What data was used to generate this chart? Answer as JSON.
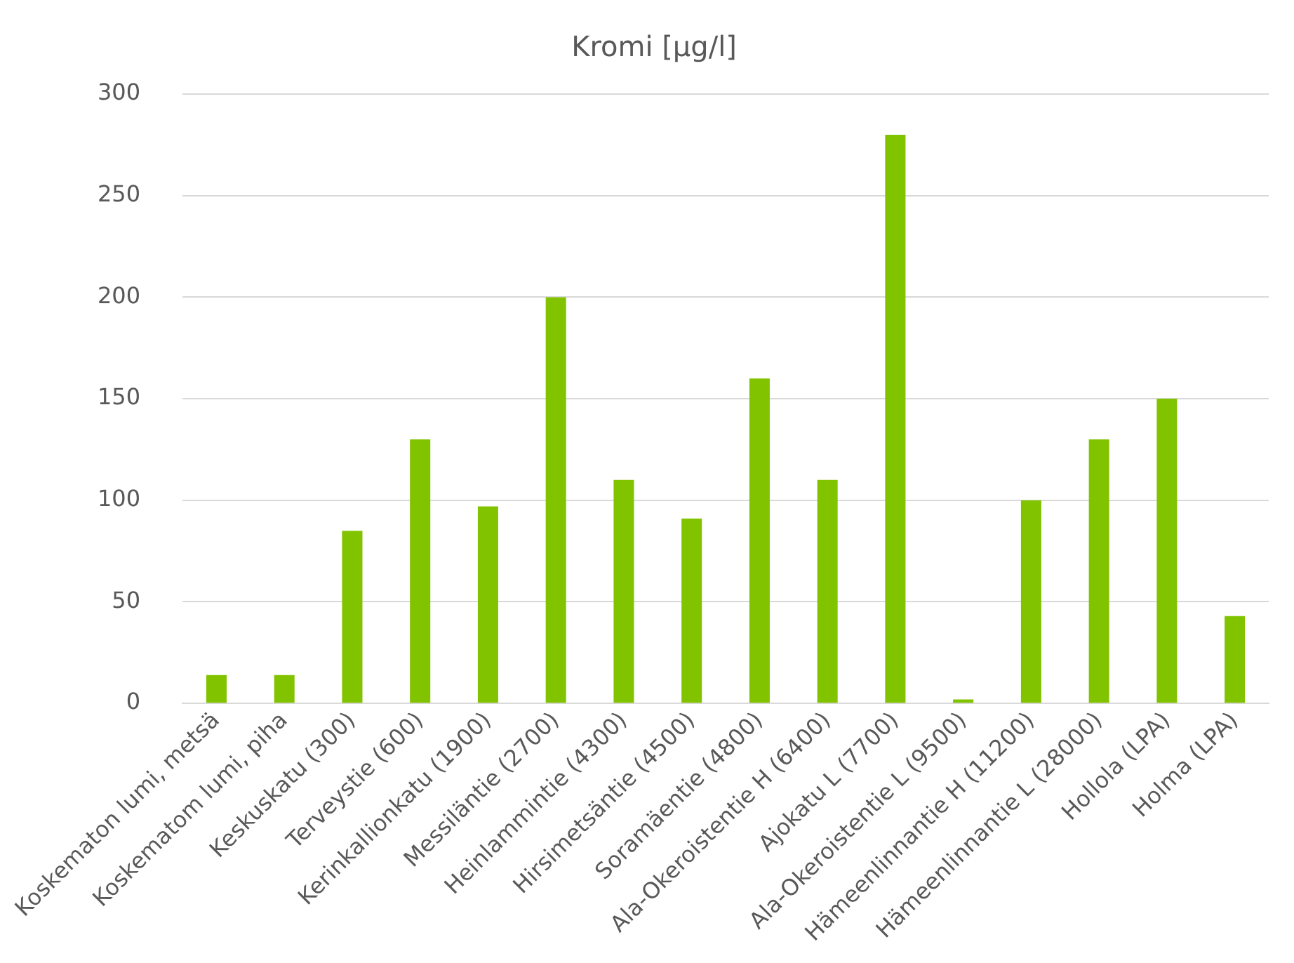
{
  "chart_data": {
    "type": "bar",
    "title": "Kromi [µg/l]",
    "categories": [
      "Koskematon lumi, metsä",
      "Koskematom lumi, piha",
      "Keskuskatu (300)",
      "Terveystie (600)",
      "Kerinkallionkatu (1900)",
      "Messiläntie (2700)",
      "Heinlammintie (4300)",
      "Hirsimetsäntie (4500)",
      "Soramäentie (4800)",
      "Ala-Okeroistentie H (6400)",
      "Ajokatu L (7700)",
      "Ala-Okeroistentie L (9500)",
      "Hämeenlinnantie H (11200)",
      "Hämeenlinnantie L (28000)",
      "Hollola (LPA)",
      "Holma (LPA)"
    ],
    "values": [
      14,
      14,
      85,
      130,
      97,
      200,
      110,
      91,
      160,
      110,
      280,
      2,
      100,
      130,
      150,
      43
    ],
    "color": "#82c300",
    "ylim": [
      0,
      300
    ],
    "yticks": [
      0,
      50,
      100,
      150,
      200,
      250,
      300
    ],
    "grid": "y",
    "legend": false
  }
}
